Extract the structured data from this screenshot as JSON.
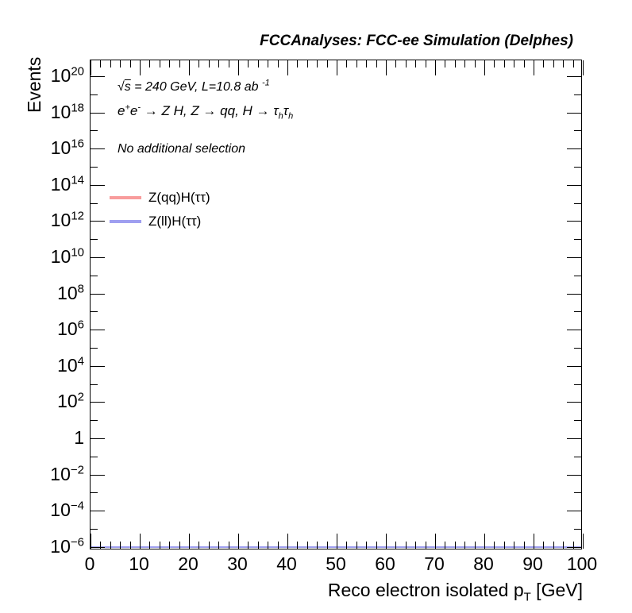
{
  "chart_data": {
    "type": "line",
    "title": "FCCAnalyses: FCC-ee Simulation (Delphes)",
    "xlabel": "Reco electron isolated p_T [GeV]",
    "ylabel": "Events",
    "x_range": [
      0,
      100
    ],
    "x_ticks": [
      0,
      10,
      20,
      30,
      40,
      50,
      60,
      70,
      80,
      90,
      100
    ],
    "x_minor_tick_step": 2,
    "x_major_tick_step": 10,
    "y_scale": "log",
    "y_log_min_exp": -6,
    "y_log_max_exp": 20,
    "y_labeled_exponents": [
      20,
      18,
      16,
      14,
      12,
      10,
      8,
      6,
      4,
      2,
      0,
      -2,
      -4,
      -6
    ],
    "grid": false,
    "legend_position": "upper-left-inside",
    "series": [
      {
        "name": "Z(qq)H(ττ)",
        "color": "#f89c9c",
        "style": "histogram-line",
        "values": [],
        "note": "no visible entries in plotted range"
      },
      {
        "name": "Z(ll)H(ττ)",
        "color": "#9f9ff0",
        "style": "histogram-line",
        "values": [],
        "note": "flat line along y-axis minimum (1e-6) across full x range 0-100"
      }
    ],
    "annotations": [
      "√s = 240 GeV, L=10.8 ab⁻¹",
      "e⁺e⁻ → Z H, Z → qq, H → τₕτₕ",
      "No additional selection"
    ]
  },
  "rich": {
    "xlabel_segments": [
      {
        "t": "Reco electron isolated p"
      },
      {
        "t": "T",
        "sub": true
      },
      {
        "t": " [GeV]"
      }
    ],
    "annotations": [
      {
        "name": "annotation-energy-luminosity",
        "segments": [
          {
            "t": "√"
          },
          {
            "t": "s",
            "overline": true
          },
          {
            "t": " = 240 GeV, L=10.8 ab "
          },
          {
            "t": "-1",
            "sup": true
          }
        ]
      },
      {
        "name": "annotation-process",
        "segments": [
          {
            "t": "e"
          },
          {
            "t": "+",
            "sup": true
          },
          {
            "t": "e"
          },
          {
            "t": "-",
            "sup": true
          },
          {
            "t": " → Z H, Z → qq, H → τ"
          },
          {
            "t": "h",
            "sub": true
          },
          {
            "t": "τ"
          },
          {
            "t": "h",
            "sub": true
          }
        ]
      },
      {
        "name": "annotation-selection",
        "segments": [
          {
            "t": "No additional selection"
          }
        ]
      }
    ]
  }
}
